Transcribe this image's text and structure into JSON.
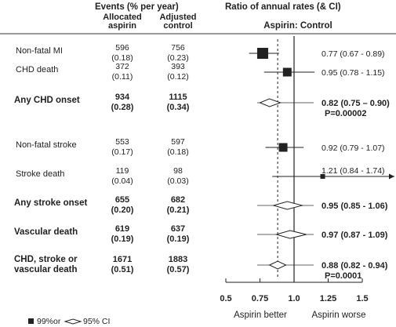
{
  "chart_data": {
    "type": "forest",
    "title": "Ratio of annual rates (& CI)",
    "events_header": "Events (% per year)",
    "col_allocated": [
      "Allocated",
      "aspirin"
    ],
    "col_adjusted": [
      "Adjusted",
      "control"
    ],
    "comparison_label": "Aspirin: Control",
    "x_ticks": [
      "0.5",
      "0.75",
      "1.0",
      "1.25",
      "1.5"
    ],
    "x_tick_values": [
      0.5,
      0.75,
      1.0,
      1.25,
      1.5
    ],
    "xlim": [
      0.5,
      1.5
    ],
    "x_left_label": "Aspirin better",
    "x_right_label": "Aspirin worse",
    "legend": {
      "square_label": "99%or",
      "diamond_label": "95% CI"
    },
    "rows": [
      {
        "label": "Non-fatal MI",
        "label2": "",
        "bold": false,
        "asp": "596",
        "asp_pct": "(0.18)",
        "ctl": "756",
        "ctl_pct": "(0.23)",
        "estimate": 0.77,
        "lo": 0.67,
        "hi": 0.89,
        "ratio_text": "0.77 (0.67 - 0.89)",
        "p_text": "",
        "marker": "square"
      },
      {
        "label": "CHD death",
        "label2": "",
        "bold": false,
        "asp": "372",
        "asp_pct": "(0.11)",
        "ctl": "393",
        "ctl_pct": "(0.12)",
        "estimate": 0.95,
        "lo": 0.78,
        "hi": 1.15,
        "ratio_text": "0.95 (0.78 - 1.15)",
        "p_text": "",
        "marker": "square"
      },
      {
        "label": "Any CHD onset",
        "label2": "",
        "bold": true,
        "asp": "934",
        "asp_pct": "(0.28)",
        "ctl": "1115",
        "ctl_pct": "(0.34)",
        "estimate": 0.82,
        "lo": 0.75,
        "hi": 0.9,
        "ratio_text": "0.82 (0.75 – 0.90)",
        "p_text": "P=0.00002",
        "marker": "diamond"
      },
      {
        "label": "Non-fatal stroke",
        "label2": "",
        "bold": false,
        "asp": "553",
        "asp_pct": "(0.17)",
        "ctl": "597",
        "ctl_pct": "(0.18)",
        "estimate": 0.92,
        "lo": 0.79,
        "hi": 1.07,
        "ratio_text": "0.92 (0.79 - 1.07)",
        "p_text": "",
        "marker": "square"
      },
      {
        "label": "Stroke death",
        "label2": "",
        "bold": false,
        "asp": "119",
        "asp_pct": "(0.04)",
        "ctl": "98",
        "ctl_pct": "(0.03)",
        "estimate": 1.21,
        "lo": 0.84,
        "hi": 1.74,
        "ratio_text": "1.21 (0.84 - 1.74)",
        "p_text": "",
        "marker": "square-small"
      },
      {
        "label": "Any stroke onset",
        "label2": "",
        "bold": true,
        "asp": "655",
        "asp_pct": "(0.20)",
        "ctl": "682",
        "ctl_pct": "(0.21)",
        "estimate": 0.95,
        "lo": 0.85,
        "hi": 1.06,
        "ratio_text": "0.95 (0.85 - 1.06)",
        "p_text": "",
        "marker": "diamond"
      },
      {
        "label": "Vascular death",
        "label2": "",
        "bold": true,
        "asp": "619",
        "asp_pct": "(0.19)",
        "ctl": "637",
        "ctl_pct": "(0.19)",
        "estimate": 0.97,
        "lo": 0.87,
        "hi": 1.09,
        "ratio_text": "0.97 (0.87 - 1.09)",
        "p_text": "",
        "marker": "diamond"
      },
      {
        "label": "CHD, stroke or",
        "label2": "vascular death",
        "bold": true,
        "asp": "1671",
        "asp_pct": "(0.51)",
        "ctl": "1883",
        "ctl_pct": "(0.57)",
        "estimate": 0.88,
        "lo": 0.82,
        "hi": 0.94,
        "ratio_text": "0.88 (0.82 - 0.94)",
        "p_text": "P=0.0001",
        "marker": "diamond"
      }
    ],
    "overall_dashed_reference": 0.88
  }
}
